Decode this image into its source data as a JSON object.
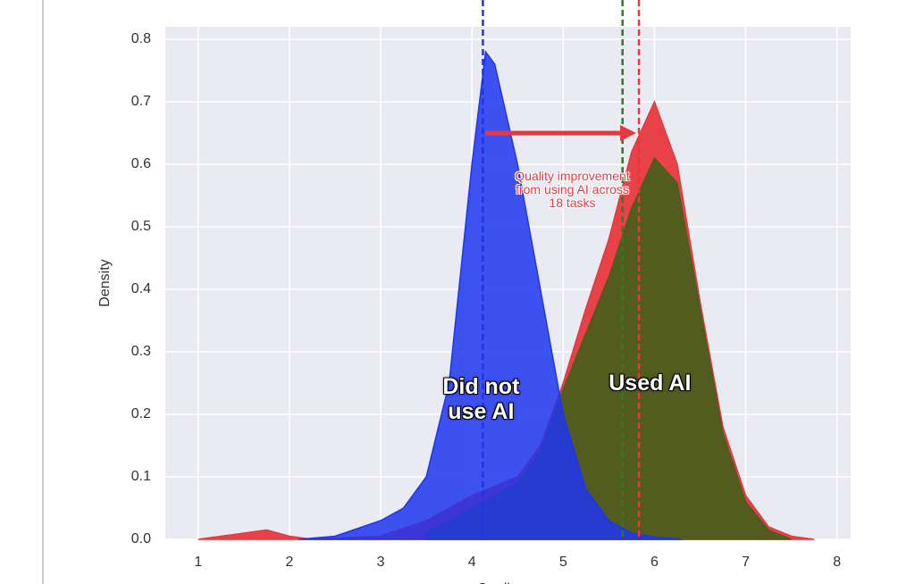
{
  "chart_data": {
    "type": "density",
    "xlabel": "Quality",
    "ylabel": "Density",
    "xlim": [
      0.64,
      8.15
    ],
    "ylim": [
      0,
      0.82
    ],
    "xticks": [
      1,
      2,
      3,
      4,
      5,
      6,
      7,
      8
    ],
    "yticks": [
      {
        "value": 0,
        "label": "0.0"
      },
      0.1,
      0.2,
      0.3,
      0.4,
      0.5,
      0.6,
      0.7,
      0.8
    ],
    "grid": true,
    "series": [
      {
        "color": "#e8383d",
        "x": [
          1.0,
          1.5,
          1.75,
          2.0,
          2.25,
          3.0,
          3.5,
          4.0,
          4.5,
          4.75,
          5.0,
          5.25,
          5.5,
          5.75,
          6.0,
          6.25,
          6.5,
          6.75,
          7.0,
          7.25,
          7.5,
          7.75
        ],
        "values": [
          0,
          0.01,
          0.015,
          0.005,
          0,
          0.005,
          0.03,
          0.07,
          0.1,
          0.15,
          0.25,
          0.37,
          0.48,
          0.62,
          0.7,
          0.6,
          0.38,
          0.18,
          0.07,
          0.02,
          0.005,
          0
        ]
      },
      {
        "name": "Used AI",
        "color": "#4a5e1c",
        "x": [
          3.5,
          4.0,
          4.5,
          4.75,
          5.0,
          5.25,
          5.5,
          5.75,
          6.0,
          6.25,
          6.5,
          6.75,
          7.0,
          7.25,
          7.5
        ],
        "values": [
          0.01,
          0.05,
          0.09,
          0.14,
          0.24,
          0.33,
          0.42,
          0.53,
          0.61,
          0.57,
          0.37,
          0.17,
          0.06,
          0.015,
          0
        ]
      },
      {
        "name": "Did not use AI",
        "color": "#1e35f0",
        "x": [
          2.1,
          2.5,
          3.0,
          3.25,
          3.5,
          3.75,
          4.0,
          4.15,
          4.25,
          4.5,
          4.75,
          5.0,
          5.25,
          5.5,
          5.75,
          6.0,
          6.3
        ],
        "values": [
          0,
          0.005,
          0.03,
          0.05,
          0.1,
          0.25,
          0.6,
          0.78,
          0.76,
          0.6,
          0.4,
          0.2,
          0.08,
          0.03,
          0.01,
          0.004,
          0
        ]
      }
    ],
    "mean_lines": [
      {
        "value": 4.12,
        "color": "#1e35f0"
      },
      {
        "value": 5.65,
        "color": "#2e7d1e"
      },
      {
        "value": 5.83,
        "color": "#e8383d"
      }
    ],
    "arrow": {
      "x": [
        4.15,
        5.8
      ],
      "y": 0.65,
      "color": "#e8383d"
    },
    "annotation": "Quality improvement from using AI across 18 tasks"
  }
}
